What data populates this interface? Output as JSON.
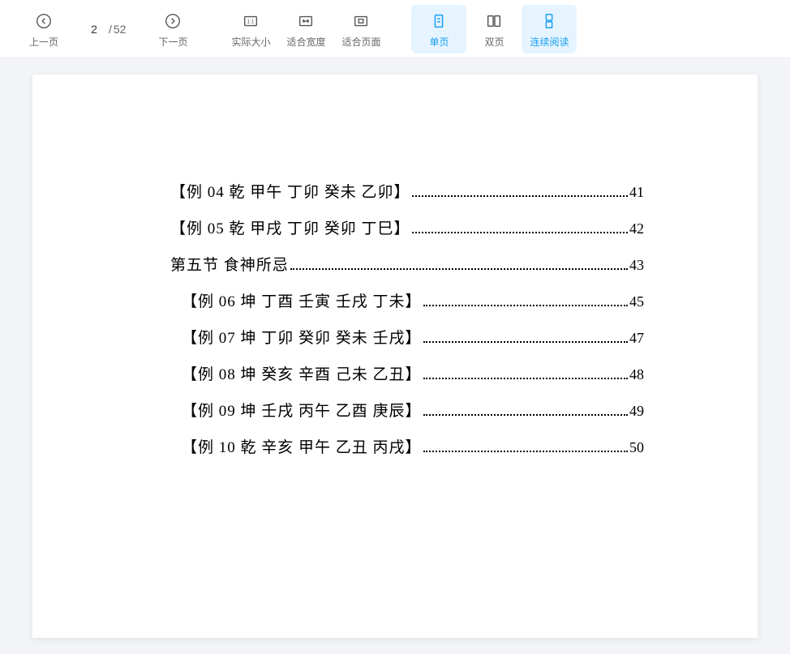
{
  "toolbar": {
    "prev_label": "上一页",
    "next_label": "下一页",
    "actual_size_label": "实际大小",
    "fit_width_label": "适合宽度",
    "fit_page_label": "适合页面",
    "single_page_label": "单页",
    "double_page_label": "双页",
    "continuous_label": "连续阅读",
    "current_page": "2",
    "total_pages": "52",
    "page_separator": "/"
  },
  "toc": {
    "items": [
      {
        "text": "【例 04 乾 甲午 丁卯 癸未 乙卯】",
        "page": "41",
        "indent": 1
      },
      {
        "text": "【例 05 乾 甲戌 丁卯 癸卯 丁巳】",
        "page": "42",
        "indent": 1
      },
      {
        "text": "第五节  食神所忌",
        "page": "43",
        "indent": 1
      },
      {
        "text": "【例 06 坤 丁酉 壬寅 壬戌 丁未】",
        "page": "45",
        "indent": 2
      },
      {
        "text": "【例 07 坤 丁卯 癸卯 癸未 壬戌】",
        "page": "47",
        "indent": 2
      },
      {
        "text": "【例 08 坤 癸亥 辛酉 己未 乙丑】",
        "page": "48",
        "indent": 2
      },
      {
        "text": "【例 09 坤 壬戌 丙午 乙酉 庚辰】",
        "page": "49",
        "indent": 2
      },
      {
        "text": "【例 10 乾 辛亥 甲午 乙丑 丙戌】",
        "page": "50",
        "indent": 2
      }
    ]
  },
  "colors": {
    "toolbar_bg": "#ffffff",
    "viewport_bg": "#f2f4f7",
    "page_bg": "#ffffff",
    "text_default": "#666666",
    "text_active": "#1a9ff2",
    "active_bg": "#e6f4ff",
    "icon_color": "#555555",
    "toc_text": "#000000"
  }
}
